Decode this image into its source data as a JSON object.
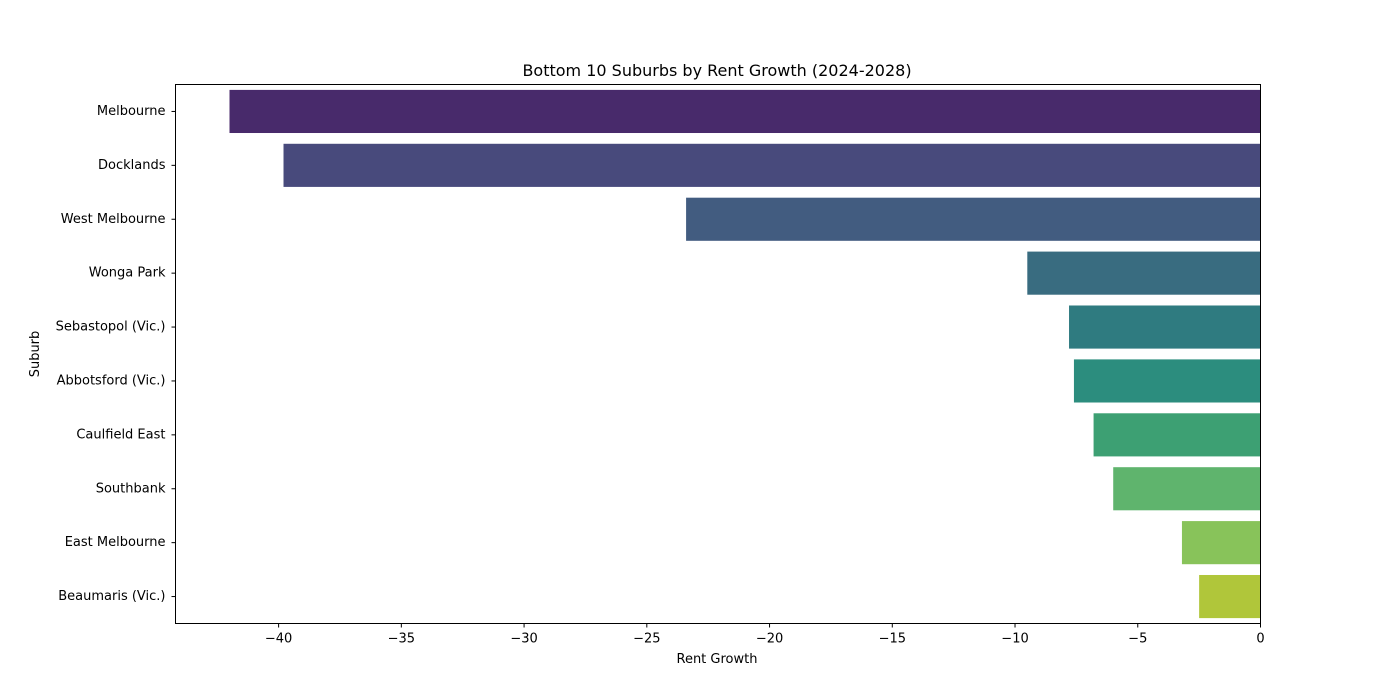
{
  "chart_data": {
    "type": "bar",
    "orientation": "horizontal",
    "title": "Bottom 10 Suburbs by Rent Growth (2024-2028)",
    "xlabel": "Rent Growth",
    "ylabel": "Suburb",
    "categories": [
      "Melbourne",
      "Docklands",
      "West Melbourne",
      "Wonga Park",
      "Sebastopol (Vic.)",
      "Abbotsford (Vic.)",
      "Caulfield East",
      "Southbank",
      "East Melbourne",
      "Beaumaris (Vic.)"
    ],
    "values": [
      -42.0,
      -39.8,
      -23.4,
      -9.5,
      -7.8,
      -7.6,
      -6.8,
      -6.0,
      -3.2,
      -2.5
    ],
    "colors": [
      "#482a6b",
      "#484a7c",
      "#425c80",
      "#396c80",
      "#2f7b80",
      "#2c8d7e",
      "#3da073",
      "#5fb46d",
      "#88c35a",
      "#b0c63a"
    ],
    "xlim": [
      -44.2,
      0
    ],
    "xticks": [
      -40,
      -35,
      -30,
      -25,
      -20,
      -15,
      -10,
      -5,
      0
    ],
    "xtick_labels": [
      "−40",
      "−35",
      "−30",
      "−25",
      "−20",
      "−15",
      "−10",
      "−5",
      "0"
    ],
    "grid": false,
    "legend": "none"
  }
}
